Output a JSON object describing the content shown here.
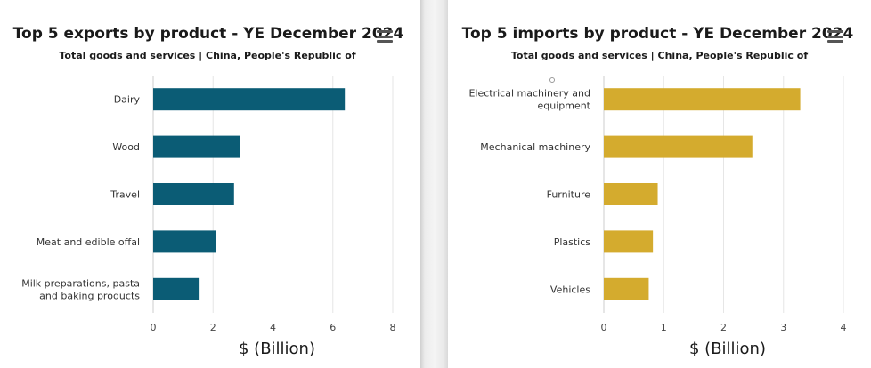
{
  "chart_data": [
    {
      "type": "bar",
      "orientation": "horizontal",
      "title": "Top 5 exports by product - YE December 2024",
      "subtitle": "Total goods and services | China, People's Republic of",
      "categories": [
        "Dairy",
        "Wood",
        "Travel",
        "Meat and edible offal",
        "Milk preparations, pasta and baking products"
      ],
      "category_lines": [
        [
          "Dairy"
        ],
        [
          "Wood"
        ],
        [
          "Travel"
        ],
        [
          "Meat and edible offal"
        ],
        [
          "Milk preparations, pasta",
          "and baking products"
        ]
      ],
      "values": [
        6.4,
        2.9,
        2.7,
        2.1,
        1.55
      ],
      "xlabel": "$ (Billion)",
      "xlim": [
        0,
        8
      ],
      "xticks": [
        0,
        2,
        4,
        6,
        8
      ],
      "grid": true,
      "color": "#0b5c75"
    },
    {
      "type": "bar",
      "orientation": "horizontal",
      "title": "Top 5 imports by product - YE December 2024",
      "subtitle": "Total goods and services | China, People's Republic of",
      "categories": [
        "Electrical machinery and equipment",
        "Mechanical machinery",
        "Furniture",
        "Plastics",
        "Vehicles"
      ],
      "category_lines": [
        [
          "Electrical machinery and",
          "equipment"
        ],
        [
          "Mechanical machinery"
        ],
        [
          "Furniture"
        ],
        [
          "Plastics"
        ],
        [
          "Vehicles"
        ]
      ],
      "values": [
        3.28,
        2.48,
        0.9,
        0.82,
        0.75
      ],
      "xlabel": "$ (Billion)",
      "xlim": [
        0,
        4
      ],
      "xticks": [
        0,
        1,
        2,
        3,
        4
      ],
      "grid": true,
      "color": "#d4ab2e"
    }
  ],
  "icons": {
    "menu": "hamburger-menu-icon",
    "radio": "radio-circle-icon"
  }
}
